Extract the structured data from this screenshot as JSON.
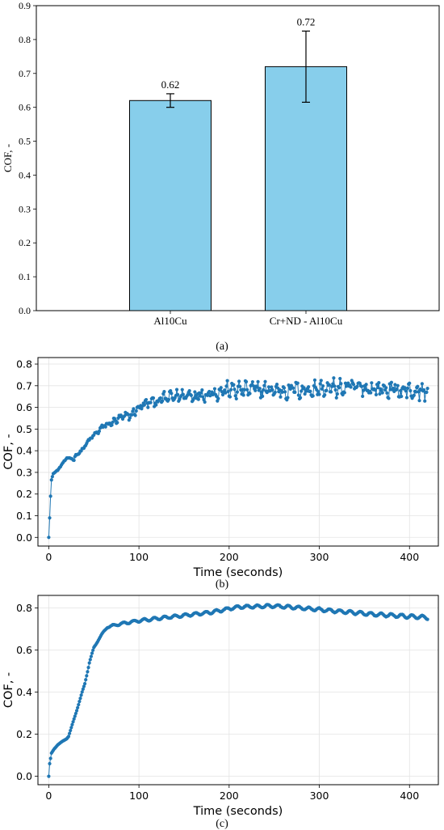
{
  "chart_data": [
    {
      "type": "bar",
      "categories": [
        "Al10Cu",
        "Cr+ND - Al10Cu"
      ],
      "values": [
        0.62,
        0.72
      ],
      "errors": [
        0.02,
        0.105
      ],
      "value_labels": [
        "0.62",
        "0.72"
      ],
      "ylabel": "COF, -",
      "ylim": [
        0,
        0.9
      ],
      "yticks": [
        "0.0",
        "0.1",
        "0.2",
        "0.3",
        "0.4",
        "0.5",
        "0.6",
        "0.7",
        "0.8",
        "0.9"
      ],
      "grid": false,
      "bar_color": "#87ceeb",
      "caption": "(a)"
    },
    {
      "type": "line",
      "xlabel": "Time (seconds)",
      "ylabel": "COF, -",
      "xlim": [
        -12,
        432
      ],
      "ylim": [
        -0.04,
        0.83
      ],
      "xticks": [
        "0",
        "100",
        "200",
        "300",
        "400"
      ],
      "yticks": [
        "0.0",
        "0.1",
        "0.2",
        "0.3",
        "0.4",
        "0.5",
        "0.6",
        "0.7",
        "0.8"
      ],
      "grid": true,
      "line_color": "#1f77b4",
      "caption": "(b)",
      "duration": 420,
      "anchors": [
        [
          0,
          0
        ],
        [
          1,
          0.09
        ],
        [
          2,
          0.19
        ],
        [
          3,
          0.265
        ],
        [
          5,
          0.295
        ],
        [
          10,
          0.31
        ],
        [
          15,
          0.34
        ],
        [
          20,
          0.365
        ],
        [
          25,
          0.365
        ],
        [
          28,
          0.36
        ],
        [
          30,
          0.38
        ],
        [
          35,
          0.395
        ],
        [
          40,
          0.42
        ],
        [
          45,
          0.45
        ],
        [
          50,
          0.47
        ],
        [
          55,
          0.49
        ],
        [
          60,
          0.51
        ],
        [
          70,
          0.53
        ],
        [
          80,
          0.55
        ],
        [
          90,
          0.56
        ],
        [
          100,
          0.6
        ],
        [
          110,
          0.62
        ],
        [
          120,
          0.63
        ],
        [
          140,
          0.65
        ],
        [
          160,
          0.66
        ],
        [
          180,
          0.67
        ],
        [
          200,
          0.68
        ],
        [
          250,
          0.68
        ],
        [
          300,
          0.685
        ],
        [
          350,
          0.69
        ],
        [
          420,
          0.67
        ]
      ],
      "noise": [
        [
          0,
          0.0
        ],
        [
          40,
          0.008
        ],
        [
          60,
          0.015
        ],
        [
          100,
          0.025
        ],
        [
          140,
          0.032
        ],
        [
          200,
          0.04
        ],
        [
          420,
          0.045
        ]
      ]
    },
    {
      "type": "line",
      "xlabel": "Time (seconds)",
      "ylabel": "COF, -",
      "xlim": [
        -12,
        432
      ],
      "ylim": [
        -0.04,
        0.86
      ],
      "xticks": [
        "0",
        "100",
        "200",
        "300",
        "400"
      ],
      "yticks": [
        "0.0",
        "0.2",
        "0.4",
        "0.6",
        "0.8"
      ],
      "grid": true,
      "line_color": "#1f77b4",
      "caption": "(c)",
      "duration": 420,
      "anchors": [
        [
          0,
          0
        ],
        [
          1,
          0.06
        ],
        [
          3,
          0.11
        ],
        [
          6,
          0.13
        ],
        [
          10,
          0.15
        ],
        [
          15,
          0.165
        ],
        [
          20,
          0.18
        ],
        [
          22,
          0.19
        ],
        [
          25,
          0.23
        ],
        [
          30,
          0.3
        ],
        [
          35,
          0.37
        ],
        [
          40,
          0.44
        ],
        [
          45,
          0.54
        ],
        [
          50,
          0.61
        ],
        [
          55,
          0.65
        ],
        [
          60,
          0.68
        ],
        [
          65,
          0.71
        ],
        [
          70,
          0.715
        ],
        [
          80,
          0.725
        ],
        [
          100,
          0.74
        ],
        [
          120,
          0.75
        ],
        [
          150,
          0.765
        ],
        [
          180,
          0.78
        ],
        [
          210,
          0.805
        ],
        [
          250,
          0.81
        ],
        [
          280,
          0.8
        ],
        [
          320,
          0.785
        ],
        [
          360,
          0.77
        ],
        [
          400,
          0.76
        ],
        [
          420,
          0.755
        ]
      ],
      "noise": [
        [
          0,
          0.0
        ],
        [
          60,
          0.004
        ],
        [
          100,
          0.006
        ],
        [
          420,
          0.008
        ]
      ]
    }
  ]
}
